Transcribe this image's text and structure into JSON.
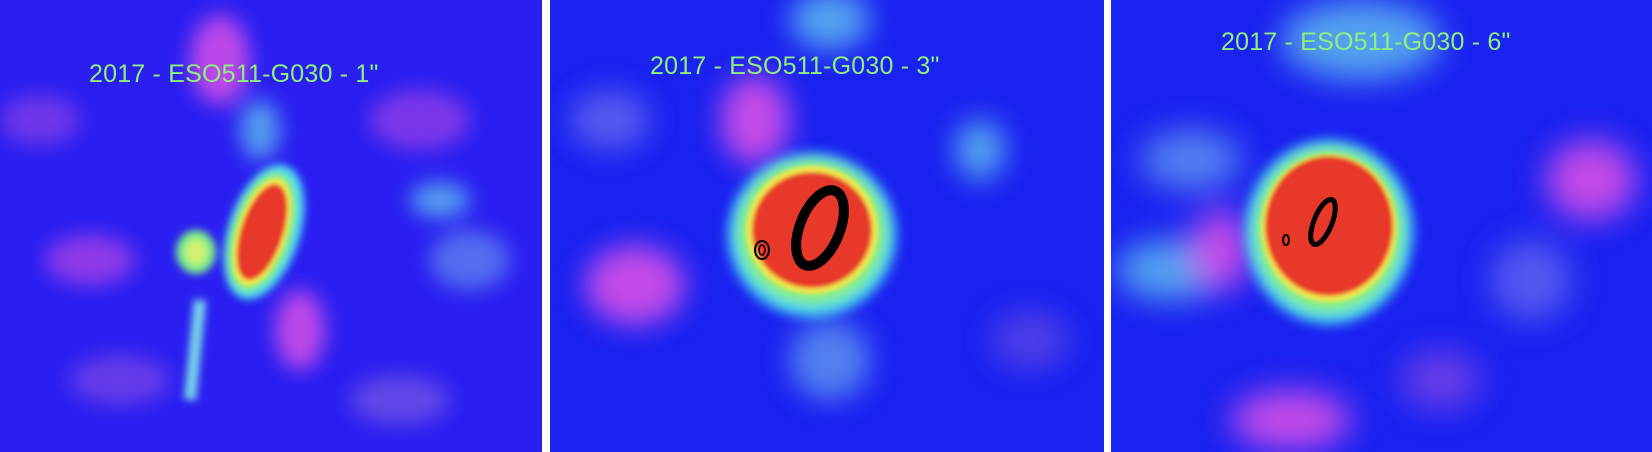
{
  "panels": [
    {
      "label": "2017 - ESO511-G030 - 1\""
    },
    {
      "label": "2017 - ESO511-G030 - 3\""
    },
    {
      "label": "2017 - ESO511-G030 - 6\""
    }
  ],
  "colors": {
    "background": "#1a22f0",
    "label": "#8ef07a",
    "core": "#e8392a",
    "contour": "#000000",
    "magenta": "#d650e8",
    "cyan": "#5fd6ea"
  },
  "icons": [
    "radio-map-image"
  ]
}
